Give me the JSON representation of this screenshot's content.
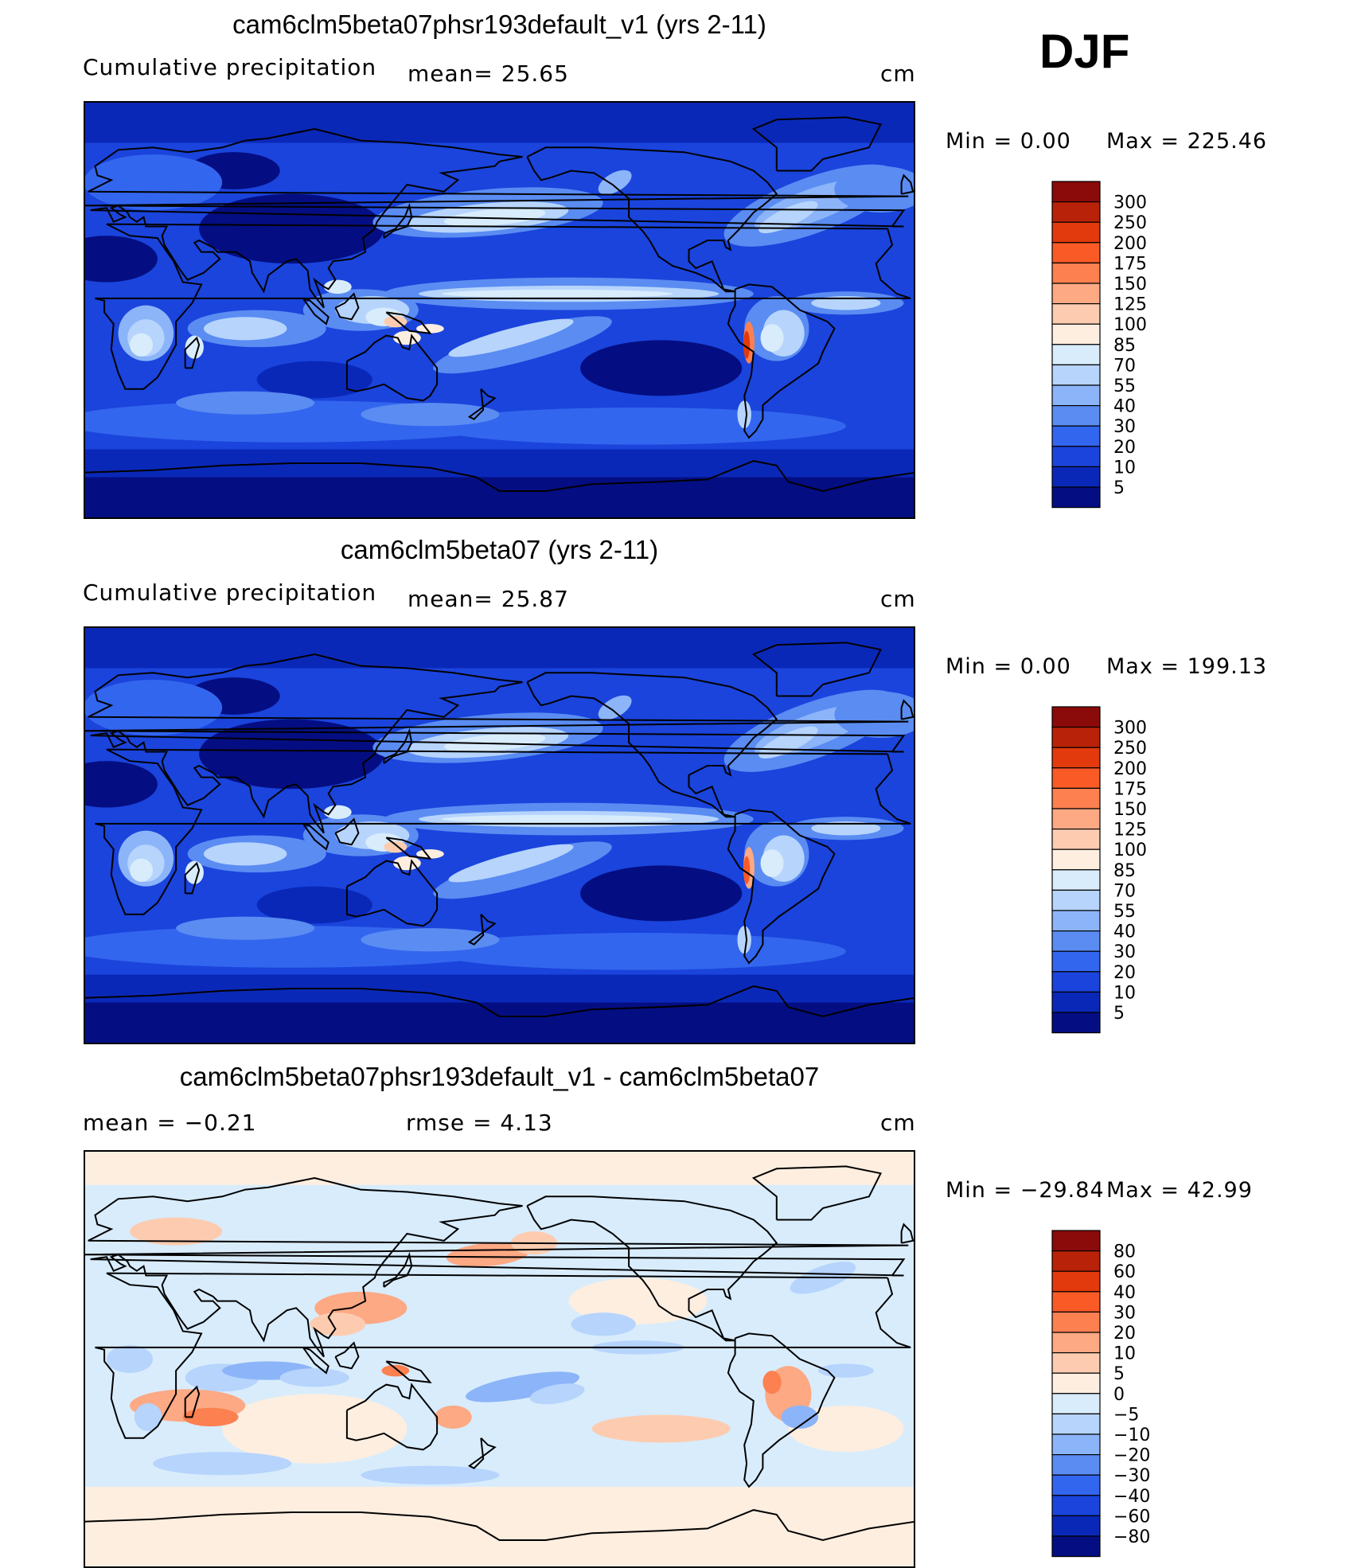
{
  "season": "DJF",
  "panels": [
    {
      "title": "cam6clm5beta07phsr193default_v1 (yrs 2-11)",
      "left_label": "Cumulative precipitation",
      "stat1": "mean=   25.65",
      "stat2": "",
      "units": "cm",
      "min_text": "Min  =     0.00",
      "max_text": "Max  =  225.46"
    },
    {
      "title": "cam6clm5beta07 (yrs 2-11)",
      "left_label": "Cumulative precipitation",
      "stat1": "mean=   25.87",
      "stat2": "",
      "units": "cm",
      "min_text": "Min  =     0.00",
      "max_text": "Max  =  199.13"
    },
    {
      "title": "cam6clm5beta07phsr193default_v1 - cam6clm5beta07",
      "left_label": "mean  =    −0.21",
      "stat1": "rmse  =     4.13",
      "stat2": "",
      "units": "cm",
      "min_text": "Min  = −29.84",
      "max_text": "Max  =    42.99"
    }
  ],
  "chart_data": [
    {
      "type": "heatmap",
      "title": "cam6clm5beta07phsr193default_v1 (yrs 2-11)",
      "subtitle": "Cumulative precipitation",
      "mean": 25.65,
      "min": 0.0,
      "max": 225.46,
      "units": "cm",
      "colorbar_levels": [
        "300",
        "250",
        "200",
        "175",
        "150",
        "125",
        "100",
        "85",
        "70",
        "55",
        "40",
        "30",
        "20",
        "10",
        "5"
      ],
      "colors": [
        "#8b0a0a",
        "#b82208",
        "#e23a0c",
        "#fa5a26",
        "#fc8050",
        "#fca984",
        "#fdccb0",
        "#fdeee0",
        "#d8ecfc",
        "#b6d4fc",
        "#8cb4f8",
        "#5a8cf2",
        "#3366ee",
        "#1a44dc",
        "#0a28b8",
        "#040e82"
      ]
    },
    {
      "type": "heatmap",
      "title": "cam6clm5beta07 (yrs 2-11)",
      "subtitle": "Cumulative precipitation",
      "mean": 25.87,
      "min": 0.0,
      "max": 199.13,
      "units": "cm",
      "colorbar_levels": [
        "300",
        "250",
        "200",
        "175",
        "150",
        "125",
        "100",
        "85",
        "70",
        "55",
        "40",
        "30",
        "20",
        "10",
        "5"
      ],
      "colors": [
        "#8b0a0a",
        "#b82208",
        "#e23a0c",
        "#fa5a26",
        "#fc8050",
        "#fca984",
        "#fdccb0",
        "#fdeee0",
        "#d8ecfc",
        "#b6d4fc",
        "#8cb4f8",
        "#5a8cf2",
        "#3366ee",
        "#1a44dc",
        "#0a28b8",
        "#040e82"
      ]
    },
    {
      "type": "heatmap",
      "title": "cam6clm5beta07phsr193default_v1 - cam6clm5beta07",
      "mean": -0.21,
      "rmse": 4.13,
      "min": -29.84,
      "max": 42.99,
      "units": "cm",
      "colorbar_levels": [
        "80",
        "60",
        "40",
        "30",
        "20",
        "10",
        "5",
        "0",
        "−5",
        "−10",
        "−20",
        "−30",
        "−40",
        "−60",
        "−80"
      ],
      "colors": [
        "#8b0a0a",
        "#b82208",
        "#e23a0c",
        "#fa5a26",
        "#fc8050",
        "#fca984",
        "#fdccb0",
        "#fdeee0",
        "#d8ecfc",
        "#b6d4fc",
        "#8cb4f8",
        "#5a8cf2",
        "#3366ee",
        "#1a44dc",
        "#0a28b8",
        "#040e82"
      ]
    }
  ]
}
